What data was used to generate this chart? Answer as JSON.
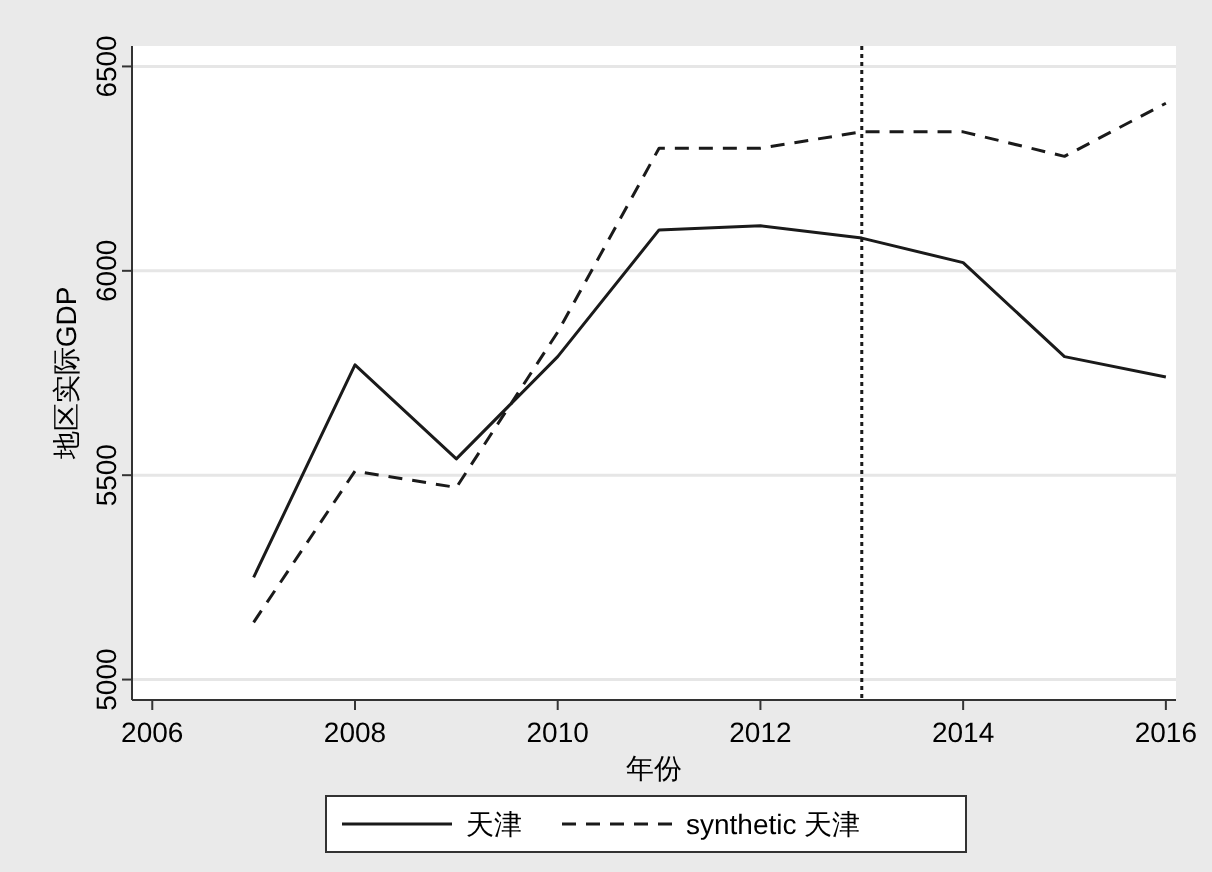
{
  "chart_data": {
    "type": "line",
    "xlabel": "年份",
    "ylabel": "地区实际GDP",
    "x": [
      2007,
      2008,
      2009,
      2010,
      2011,
      2012,
      2013,
      2014,
      2015,
      2016
    ],
    "series": [
      {
        "name": "天津",
        "color": "#1a1a1a",
        "line_style": "solid",
        "values": [
          5250,
          5770,
          5540,
          5790,
          6100,
          6110,
          6080,
          6020,
          5790,
          5740
        ]
      },
      {
        "name": "synthetic 天津",
        "color": "#1a1a1a",
        "line_style": "dashed",
        "values": [
          5140,
          5510,
          5470,
          5850,
          6300,
          6300,
          6340,
          6340,
          6280,
          6410
        ]
      }
    ],
    "xlim": [
      2005.8,
      2016.1
    ],
    "xticks": [
      2006,
      2008,
      2010,
      2012,
      2014,
      2016
    ],
    "ylim": [
      4950,
      6550
    ],
    "yticks": [
      5000,
      5500,
      6000,
      6500
    ],
    "grid": "y",
    "legend": "bottom",
    "ref_lines": [
      {
        "axis": "x",
        "value": 2013,
        "color": "#1a1a1a",
        "line_style": "dotted"
      }
    ]
  }
}
